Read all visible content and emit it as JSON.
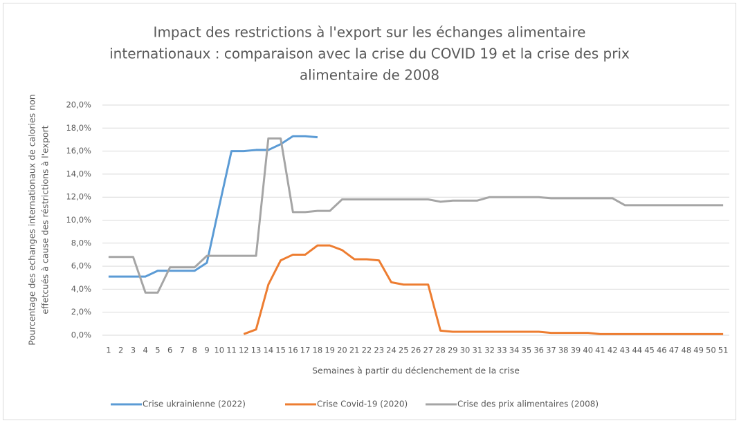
{
  "chart_data": {
    "type": "line",
    "title": [
      "Impact des restrictions à l'export sur les échanges alimentaire",
      "internationaux : comparaison avec la crise du COVID 19 et la crise des prix",
      "alimentaire de 2008"
    ],
    "x_label": "Semaines à partir du déclenchement  de la crise",
    "y_label": [
      "Pourcentage des echanges internationaux de calories non",
      "effetcués à cause des réstrictions à l'export"
    ],
    "categories": [
      1,
      2,
      3,
      4,
      5,
      6,
      7,
      8,
      9,
      10,
      11,
      12,
      13,
      14,
      15,
      16,
      17,
      18,
      19,
      20,
      21,
      22,
      23,
      24,
      25,
      26,
      27,
      28,
      29,
      30,
      31,
      32,
      33,
      34,
      35,
      36,
      37,
      38,
      39,
      40,
      41,
      42,
      43,
      44,
      45,
      46,
      47,
      48,
      49,
      50,
      51
    ],
    "ylim": [
      0,
      20
    ],
    "yticks": [
      {
        "value": 0,
        "label": "0,0%"
      },
      {
        "value": 2,
        "label": "2,0%"
      },
      {
        "value": 4,
        "label": "4,0%"
      },
      {
        "value": 6,
        "label": "6,0%"
      },
      {
        "value": 8,
        "label": "8,0%"
      },
      {
        "value": 10,
        "label": "10,0%"
      },
      {
        "value": 12,
        "label": "12,0%"
      },
      {
        "value": 14,
        "label": "14,0%"
      },
      {
        "value": 16,
        "label": "16,0%"
      },
      {
        "value": 18,
        "label": "18,0%"
      },
      {
        "value": 20,
        "label": "20,0%"
      }
    ],
    "grid": true,
    "legend": "bottom",
    "series": [
      {
        "name": "Crise ukrainienne (2022)",
        "color": "#5b9bd5",
        "values": [
          5.1,
          5.1,
          5.1,
          5.1,
          5.6,
          5.6,
          5.6,
          5.6,
          6.3,
          11.2,
          16.0,
          16.0,
          16.1,
          16.1,
          16.6,
          17.3,
          17.3,
          17.2,
          null,
          null,
          null,
          null,
          null,
          null,
          null,
          null,
          null,
          null,
          null,
          null,
          null,
          null,
          null,
          null,
          null,
          null,
          null,
          null,
          null,
          null,
          null,
          null,
          null,
          null,
          null,
          null,
          null,
          null,
          null,
          null,
          null
        ]
      },
      {
        "name": "Crise Covid-19 (2020)",
        "color": "#ed7d31",
        "values": [
          null,
          null,
          null,
          null,
          null,
          null,
          null,
          null,
          null,
          null,
          null,
          0.1,
          0.5,
          4.4,
          6.5,
          7.0,
          7.0,
          7.8,
          7.8,
          7.4,
          6.6,
          6.6,
          6.5,
          4.6,
          4.4,
          4.4,
          4.4,
          0.4,
          0.3,
          0.3,
          0.3,
          0.3,
          0.3,
          0.3,
          0.3,
          0.3,
          0.2,
          0.2,
          0.2,
          0.2,
          0.1,
          0.1,
          0.1,
          0.1,
          0.1,
          0.1,
          0.1,
          0.1,
          0.1,
          0.1,
          0.1
        ]
      },
      {
        "name": "Crise des prix alimentaires (2008)",
        "color": "#a5a5a5",
        "values": [
          6.8,
          6.8,
          6.8,
          3.7,
          3.7,
          5.9,
          5.9,
          5.9,
          6.9,
          6.9,
          6.9,
          6.9,
          6.9,
          17.1,
          17.1,
          10.7,
          10.7,
          10.8,
          10.8,
          11.8,
          11.8,
          11.8,
          11.8,
          11.8,
          11.8,
          11.8,
          11.8,
          11.6,
          11.7,
          11.7,
          11.7,
          12.0,
          12.0,
          12.0,
          12.0,
          12.0,
          11.9,
          11.9,
          11.9,
          11.9,
          11.9,
          11.9,
          11.3,
          11.3,
          11.3,
          11.3,
          11.3,
          11.3,
          11.3,
          11.3,
          11.3
        ]
      }
    ]
  }
}
